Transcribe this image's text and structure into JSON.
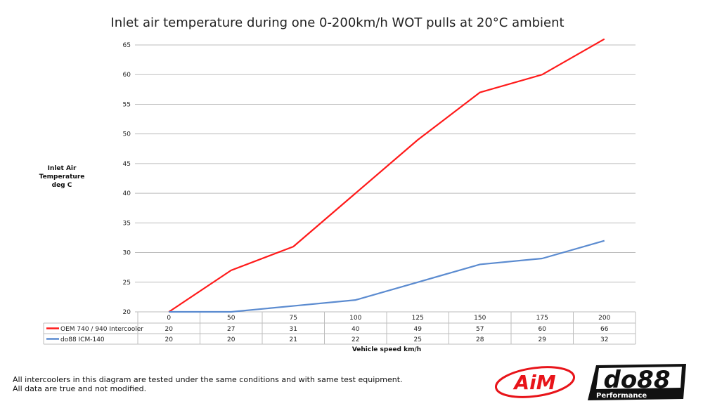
{
  "chart_data": {
    "type": "line",
    "title": "Inlet air temperature during one 0-200km/h WOT pulls at 20°C ambient",
    "ylabel_lines": [
      "Inlet Air",
      "Temperature",
      "deg C"
    ],
    "xlabel": "Vehicle speed km/h",
    "categories": [
      "0",
      "50",
      "75",
      "100",
      "125",
      "150",
      "175",
      "200"
    ],
    "ylim": [
      20,
      65
    ],
    "yticks": [
      20,
      25,
      30,
      35,
      40,
      45,
      50,
      55,
      60,
      65
    ],
    "grid": true,
    "legend": "data-table-below",
    "series": [
      {
        "name": "OEM 740 / 940 Intercooler",
        "color": "#ff1a1a",
        "values": [
          20,
          27,
          31,
          40,
          49,
          57,
          60,
          66
        ]
      },
      {
        "name": "do88 ICM-140",
        "color": "#5b8bd0",
        "values": [
          20,
          20,
          21,
          22,
          25,
          28,
          29,
          32
        ]
      }
    ]
  },
  "footnote": [
    "All intercoolers in this diagram are tested under the same conditions and with same test equipment.",
    "All data are true and not modified."
  ],
  "logos": {
    "aim": "AiM",
    "do88": "do88",
    "do88_sub": "Performance"
  }
}
